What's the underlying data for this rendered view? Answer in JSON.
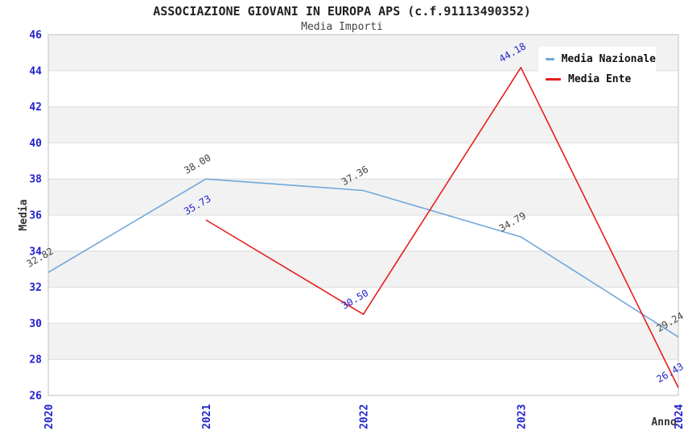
{
  "header": {
    "title": "ASSOCIAZIONE GIOVANI IN EUROPA APS (c.f.91113490352)",
    "subtitle": "Media Importi"
  },
  "legend": {
    "items": [
      {
        "label": "Media Nazionale",
        "color": "#70A8DC"
      },
      {
        "label": "Media Ente",
        "color": "#E71D1F"
      }
    ]
  },
  "chart_data": {
    "type": "line",
    "title": "ASSOCIAZIONE GIOVANI IN EUROPA APS (c.f.91113490352)",
    "subtitle": "Media Importi",
    "xlabel": "Anno",
    "ylabel": "Media",
    "x": [
      2020,
      2021,
      2022,
      2023,
      2024
    ],
    "xtick_labels": [
      "2020",
      "2021",
      "2022",
      "2023",
      "2024"
    ],
    "ylim": [
      26,
      46
    ],
    "yticks": [
      26,
      28,
      30,
      32,
      34,
      36,
      38,
      40,
      42,
      44,
      46
    ],
    "grid": true,
    "legend_position": "top-right",
    "series": [
      {
        "name": "Media Nazionale",
        "color": "#70A8DC",
        "label_color": "#444444",
        "values": [
          32.82,
          38.0,
          37.36,
          34.79,
          29.24
        ],
        "point_labels": [
          "32.82",
          "38.00",
          "37.36",
          "34.79",
          "29.24"
        ]
      },
      {
        "name": "Media Ente",
        "color": "#E71D1F",
        "label_color": "#2222CC",
        "values": [
          null,
          35.73,
          30.5,
          44.18,
          26.43
        ],
        "point_labels": [
          "",
          "35.73",
          "30.50",
          "44.18",
          "26.43"
        ]
      }
    ],
    "colors": {
      "tick_label": "#2222CC",
      "axis_title": "#333333",
      "band_fill": "#F2F2F2",
      "gridline": "#DCDCDC",
      "plot_border": "#C0C0C0"
    }
  }
}
